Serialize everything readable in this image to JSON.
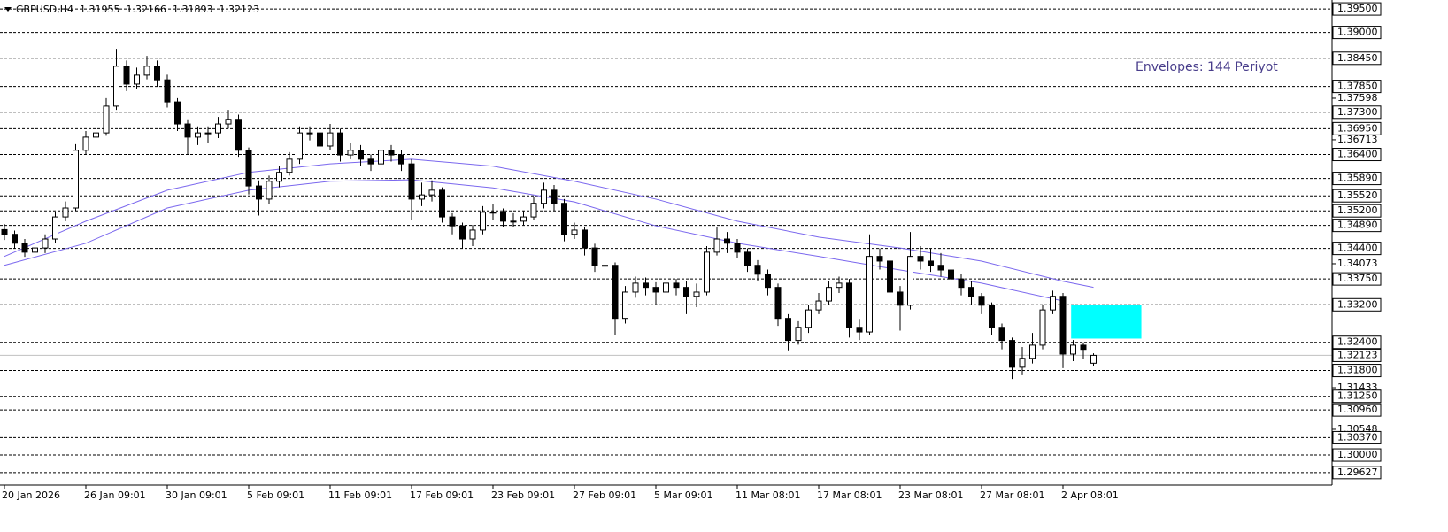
{
  "chart_data": {
    "type": "candlestick",
    "symbol": "GBPUSD,H4",
    "annotation": "Envelopes: 144 Periyot",
    "open": [
      1.348,
      1.347,
      1.3451,
      1.3432,
      1.3441,
      1.346,
      1.3507,
      1.3526,
      1.3649,
      1.3677,
      1.3686,
      1.3743,
      1.3828,
      1.379,
      1.3809,
      1.3828,
      1.3799,
      1.3752,
      1.3705,
      1.3677,
      1.3686,
      1.3686,
      1.3705,
      1.3715,
      1.3649,
      1.3573,
      1.3545,
      1.3583,
      1.3602,
      1.363,
      1.3686,
      1.3686,
      1.3658,
      1.3686,
      1.3639,
      1.3649,
      1.363,
      1.362,
      1.3649,
      1.3639,
      1.362,
      1.3545,
      1.3554,
      1.3564,
      1.3507,
      1.3488,
      1.346,
      1.3479,
      1.3517,
      1.3517,
      1.3498,
      1.3498,
      1.3507,
      1.3536,
      1.3564,
      1.3536,
      1.347,
      1.3479,
      1.3441,
      1.3404,
      1.3404,
      1.3291,
      1.3347,
      1.3366,
      1.3357,
      1.3347,
      1.3366,
      1.3357,
      1.3338,
      1.3347,
      1.3432,
      1.346,
      1.3451,
      1.3432,
      1.3404,
      1.3385,
      1.3357,
      1.3291,
      1.3244,
      1.3272,
      1.3309,
      1.3328,
      1.3357,
      1.3366,
      1.3272,
      1.3262,
      1.3423,
      1.3413,
      1.3347,
      1.3319,
      1.3423,
      1.3413,
      1.3404,
      1.3394,
      1.3375,
      1.3357,
      1.3338,
      1.3319,
      1.3272,
      1.3244,
      1.3187,
      1.3206,
      1.3234,
      1.3309,
      1.3338,
      1.3215,
      1.3234,
      1.31955
    ],
    "high": [
      1.3492,
      1.3478,
      1.346,
      1.3452,
      1.347,
      1.3518,
      1.354,
      1.3662,
      1.369,
      1.37,
      1.376,
      1.3865,
      1.384,
      1.3825,
      1.385,
      1.384,
      1.381,
      1.376,
      1.3715,
      1.37,
      1.37,
      1.372,
      1.3735,
      1.3725,
      1.3655,
      1.3585,
      1.3595,
      1.3615,
      1.3645,
      1.37,
      1.37,
      1.3695,
      1.3705,
      1.3695,
      1.3665,
      1.366,
      1.364,
      1.3665,
      1.366,
      1.365,
      1.363,
      1.358,
      1.3585,
      1.357,
      1.3515,
      1.3495,
      1.349,
      1.353,
      1.3535,
      1.3525,
      1.3515,
      1.352,
      1.355,
      1.358,
      1.3575,
      1.3545,
      1.3495,
      1.3485,
      1.345,
      1.342,
      1.341,
      1.336,
      1.338,
      1.3378,
      1.3368,
      1.338,
      1.3375,
      1.337,
      1.3365,
      1.3445,
      1.3485,
      1.3475,
      1.346,
      1.344,
      1.3415,
      1.3395,
      1.3365,
      1.33,
      1.3285,
      1.332,
      1.3345,
      1.337,
      1.338,
      1.3375,
      1.329,
      1.347,
      1.344,
      1.342,
      1.336,
      1.3475,
      1.3445,
      1.344,
      1.343,
      1.3405,
      1.3385,
      1.337,
      1.3345,
      1.3325,
      1.328,
      1.325,
      1.323,
      1.326,
      1.332,
      1.335,
      1.3345,
      1.3245,
      1.324,
      1.32166
    ],
    "low": [
      1.3458,
      1.344,
      1.3422,
      1.342,
      1.343,
      1.3452,
      1.3498,
      1.352,
      1.364,
      1.3665,
      1.368,
      1.3735,
      1.3775,
      1.378,
      1.38,
      1.3785,
      1.374,
      1.369,
      1.364,
      1.366,
      1.3665,
      1.3675,
      1.3695,
      1.3635,
      1.3555,
      1.351,
      1.3535,
      1.357,
      1.3595,
      1.362,
      1.367,
      1.3645,
      1.365,
      1.3625,
      1.363,
      1.3615,
      1.3605,
      1.361,
      1.3625,
      1.3605,
      1.35,
      1.353,
      1.354,
      1.3495,
      1.347,
      1.344,
      1.3445,
      1.347,
      1.35,
      1.3485,
      1.3485,
      1.349,
      1.35,
      1.3525,
      1.352,
      1.3455,
      1.346,
      1.3425,
      1.339,
      1.3385,
      1.3256,
      1.328,
      1.3335,
      1.334,
      1.332,
      1.3335,
      1.334,
      1.33,
      1.3315,
      1.334,
      1.3425,
      1.343,
      1.342,
      1.339,
      1.337,
      1.334,
      1.3275,
      1.3223,
      1.3235,
      1.326,
      1.33,
      1.332,
      1.3345,
      1.325,
      1.3245,
      1.3255,
      1.3395,
      1.333,
      1.3265,
      1.331,
      1.3395,
      1.339,
      1.338,
      1.336,
      1.334,
      1.332,
      1.33,
      1.3255,
      1.3225,
      1.3162,
      1.317,
      1.3195,
      1.3225,
      1.33,
      1.3185,
      1.32,
      1.3205,
      1.31893
    ],
    "close": [
      1.347,
      1.3451,
      1.3432,
      1.3441,
      1.346,
      1.3507,
      1.3526,
      1.3649,
      1.3677,
      1.3686,
      1.3743,
      1.3828,
      1.379,
      1.3809,
      1.3828,
      1.3799,
      1.3752,
      1.3705,
      1.3677,
      1.3686,
      1.3686,
      1.3705,
      1.3715,
      1.3649,
      1.3573,
      1.3545,
      1.3583,
      1.3602,
      1.363,
      1.3686,
      1.3686,
      1.3658,
      1.3686,
      1.3639,
      1.3649,
      1.363,
      1.362,
      1.3649,
      1.3639,
      1.362,
      1.3545,
      1.3554,
      1.3564,
      1.3507,
      1.3488,
      1.346,
      1.3479,
      1.3517,
      1.3517,
      1.3498,
      1.3498,
      1.3507,
      1.3536,
      1.3564,
      1.3536,
      1.347,
      1.3479,
      1.3441,
      1.3404,
      1.3404,
      1.3291,
      1.3347,
      1.3366,
      1.3357,
      1.3347,
      1.3366,
      1.3357,
      1.3338,
      1.3347,
      1.3432,
      1.346,
      1.3451,
      1.3432,
      1.3404,
      1.3385,
      1.3357,
      1.3291,
      1.3244,
      1.3272,
      1.3309,
      1.3328,
      1.3357,
      1.3366,
      1.3272,
      1.3262,
      1.3423,
      1.3413,
      1.3347,
      1.3319,
      1.3423,
      1.3413,
      1.3404,
      1.3394,
      1.3375,
      1.3357,
      1.3338,
      1.3319,
      1.3272,
      1.3244,
      1.3187,
      1.3206,
      1.3234,
      1.3309,
      1.3338,
      1.3215,
      1.3234,
      1.3225,
      1.32123
    ],
    "bull_color": "#ffffff",
    "bear_color": "#000000",
    "outline_color": "#000000",
    "envelopes": [
      {
        "color": "#7b68ee",
        "x": [
          0,
          8,
          16,
          24,
          32,
          40,
          48,
          56,
          64,
          72,
          80,
          88,
          96,
          104,
          107
        ],
        "values": [
          1.3423,
          1.3498,
          1.3564,
          1.3602,
          1.362,
          1.363,
          1.3615,
          1.3583,
          1.3545,
          1.3498,
          1.3464,
          1.3441,
          1.3413,
          1.337,
          1.3357
        ]
      },
      {
        "color": "#7b68ee",
        "x": [
          0,
          8,
          16,
          24,
          32,
          40,
          48,
          56,
          64,
          72,
          80,
          88,
          96,
          104
        ],
        "values": [
          1.3404,
          1.3451,
          1.3526,
          1.3564,
          1.3583,
          1.3586,
          1.3569,
          1.3539,
          1.3488,
          1.3451,
          1.3423,
          1.3394,
          1.3366,
          1.3328
        ]
      }
    ],
    "zone": {
      "x": [
        104.8,
        111.7
      ],
      "top": 1.332,
      "bottom": 1.3248,
      "color": "#00ffff"
    },
    "ylim": [
      1.2936,
      1.3969
    ],
    "yticks": [
      1.37598,
      1.36713,
      1.34073,
      1.31433,
      1.30548
    ],
    "levels": [
      {
        "value": 1.395,
        "label": "1.39500"
      },
      {
        "value": 1.39,
        "label": "1.39000"
      },
      {
        "value": 1.3845,
        "label": "1.38450"
      },
      {
        "value": 1.3785,
        "label": "1.37850"
      },
      {
        "value": 1.373,
        "label": "1.37300"
      },
      {
        "value": 1.3695,
        "label": "1.36950"
      },
      {
        "value": 1.364,
        "label": "1.36400"
      },
      {
        "value": 1.3589,
        "label": "1.35890"
      },
      {
        "value": 1.3552,
        "label": "1.35520"
      },
      {
        "value": 1.352,
        "label": "1.35200"
      },
      {
        "value": 1.3489,
        "label": "1.34890"
      },
      {
        "value": 1.344,
        "label": "1.34400"
      },
      {
        "value": 1.3375,
        "label": "1.33750"
      },
      {
        "value": 1.332,
        "label": "1.33200"
      },
      {
        "value": 1.324,
        "label": "1.32400"
      },
      {
        "value": 1.318,
        "label": "1.31800"
      },
      {
        "value": 1.3125,
        "label": "1.31250"
      },
      {
        "value": 1.3096,
        "label": "1.30960"
      },
      {
        "value": 1.3037,
        "label": "1.30370"
      },
      {
        "value": 1.3,
        "label": "1.30000"
      },
      {
        "value": 1.29627,
        "label": "1.29627"
      }
    ],
    "xticks": [
      {
        "value": 0,
        "label": "20 Jan 2026"
      },
      {
        "value": 8,
        "label": "26 Jan 09:01"
      },
      {
        "value": 16,
        "label": "30 Jan 09:01"
      },
      {
        "value": 24,
        "label": "5 Feb 09:01"
      },
      {
        "value": 32,
        "label": "11 Feb 09:01"
      },
      {
        "value": 40,
        "label": "17 Feb 09:01"
      },
      {
        "value": 48,
        "label": "23 Feb 09:01"
      },
      {
        "value": 56,
        "label": "27 Feb 09:01"
      },
      {
        "value": 64,
        "label": "5 Mar 09:01"
      },
      {
        "value": 72,
        "label": "11 Mar 08:01"
      },
      {
        "value": 80,
        "label": "17 Mar 08:01"
      },
      {
        "value": 88,
        "label": "23 Mar 08:01"
      },
      {
        "value": 96,
        "label": "27 Mar 08:01"
      },
      {
        "value": 104,
        "label": "2 Apr 08:01"
      }
    ]
  }
}
